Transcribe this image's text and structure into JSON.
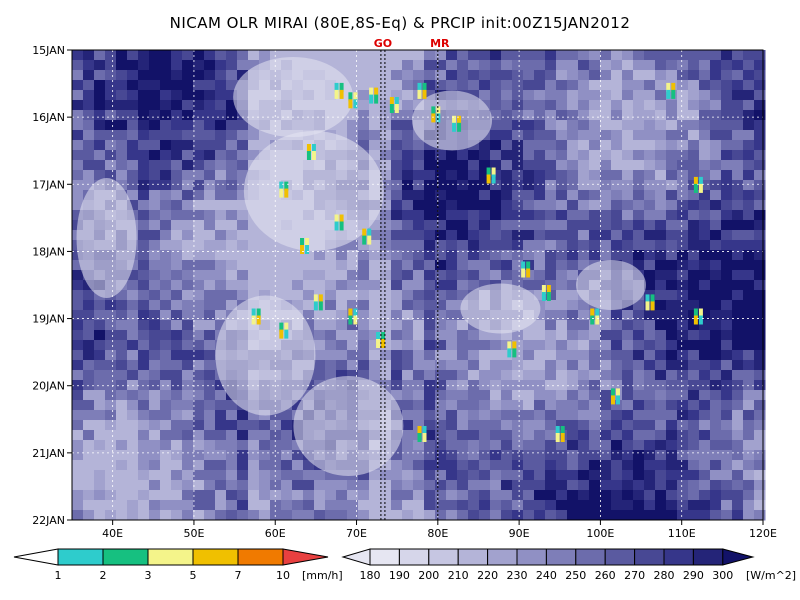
{
  "colors": {
    "olr": [
      "#e6e6f2",
      "#d6d6ea",
      "#c6c6e2",
      "#b4b4d8",
      "#a2a2ce",
      "#9090c4",
      "#7e7eb8",
      "#6c6cac",
      "#5a5aa0",
      "#484894",
      "#36368a",
      "#242478",
      "#121268"
    ],
    "precip": [
      "#2ecccc",
      "#16c080",
      "#f4f48a",
      "#f0c000",
      "#f07a00",
      "#e84040"
    ],
    "marker": "#dd0000"
  },
  "chart_data": {
    "type": "heatmap",
    "title": "NICAM OLR MIRAI (80E,8S-Eq) & PRCIP init:00Z15JAN2012",
    "x_ticks": [
      "40E",
      "50E",
      "60E",
      "70E",
      "80E",
      "90E",
      "100E",
      "110E",
      "120E"
    ],
    "x_tick_values": [
      40,
      50,
      60,
      70,
      80,
      90,
      100,
      110,
      120
    ],
    "xlim": [
      35,
      120
    ],
    "y_ticks": [
      "15JAN",
      "16JAN",
      "17JAN",
      "18JAN",
      "19JAN",
      "20JAN",
      "21JAN",
      "22JAN"
    ],
    "y_tick_values": [
      15,
      16,
      17,
      18,
      19,
      20,
      21,
      22
    ],
    "ylim": [
      15,
      22
    ],
    "grid": true,
    "markers": [
      {
        "label": "GO",
        "lon": 73
      },
      {
        "label": "MR",
        "lon": 80
      }
    ],
    "precip_colorbar": {
      "labels": [
        "1",
        "2",
        "3",
        "5",
        "7",
        "10"
      ],
      "unit": "[mm/h]"
    },
    "olr_colorbar": {
      "labels": [
        "180",
        "190",
        "200",
        "210",
        "220",
        "230",
        "240",
        "250",
        "260",
        "270",
        "280",
        "290",
        "300"
      ],
      "unit": "[W/m^2]"
    }
  }
}
